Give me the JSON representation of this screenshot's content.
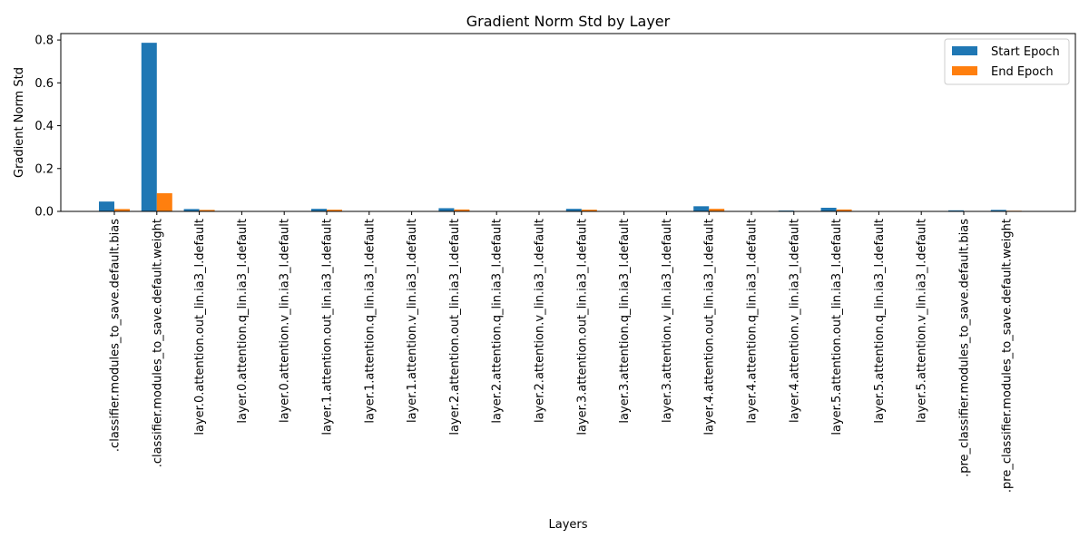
{
  "chart_data": {
    "type": "bar",
    "title": "Gradient Norm Std by Layer",
    "xlabel": "Layers",
    "ylabel": "Gradient Norm Std",
    "ylim": [
      0,
      0.83
    ],
    "yticks": [
      0.0,
      0.2,
      0.4,
      0.6,
      0.8
    ],
    "ytick_labels": [
      "0.0",
      "0.2",
      "0.4",
      "0.6",
      "0.8"
    ],
    "grid": false,
    "legend_position": "top-right",
    "categories": [
      ".classifier.modules_to_save.default.bias",
      ".classifier.modules_to_save.default.weight",
      "layer.0.attention.out_lin.ia3_l.default",
      "layer.0.attention.q_lin.ia3_l.default",
      "layer.0.attention.v_lin.ia3_l.default",
      "layer.1.attention.out_lin.ia3_l.default",
      "layer.1.attention.q_lin.ia3_l.default",
      "layer.1.attention.v_lin.ia3_l.default",
      "layer.2.attention.out_lin.ia3_l.default",
      "layer.2.attention.q_lin.ia3_l.default",
      "layer.2.attention.v_lin.ia3_l.default",
      "layer.3.attention.out_lin.ia3_l.default",
      "layer.3.attention.q_lin.ia3_l.default",
      "layer.3.attention.v_lin.ia3_l.default",
      "layer.4.attention.out_lin.ia3_l.default",
      "layer.4.attention.q_lin.ia3_l.default",
      "layer.4.attention.v_lin.ia3_l.default",
      "layer.5.attention.out_lin.ia3_l.default",
      "layer.5.attention.q_lin.ia3_l.default",
      "layer.5.attention.v_lin.ia3_l.default",
      ".pre_classifier.modules_to_save.default.bias",
      ".pre_classifier.modules_to_save.default.weight"
    ],
    "series": [
      {
        "name": "Start Epoch",
        "color": "#1f77b4",
        "values": [
          0.046,
          0.787,
          0.011,
          0.0,
          0.0,
          0.012,
          0.0,
          0.0,
          0.015,
          0.0,
          0.0,
          0.012,
          0.0,
          0.0,
          0.024,
          0.0,
          0.004,
          0.017,
          0.0,
          0.0,
          0.005,
          0.007
        ]
      },
      {
        "name": "End Epoch",
        "color": "#ff7f0e",
        "values": [
          0.011,
          0.085,
          0.007,
          0.0,
          0.0,
          0.008,
          0.0,
          0.0,
          0.009,
          0.0,
          0.0,
          0.008,
          0.0,
          0.0,
          0.012,
          0.0,
          0.001,
          0.009,
          0.0,
          0.0,
          0.001,
          0.003
        ]
      }
    ]
  }
}
